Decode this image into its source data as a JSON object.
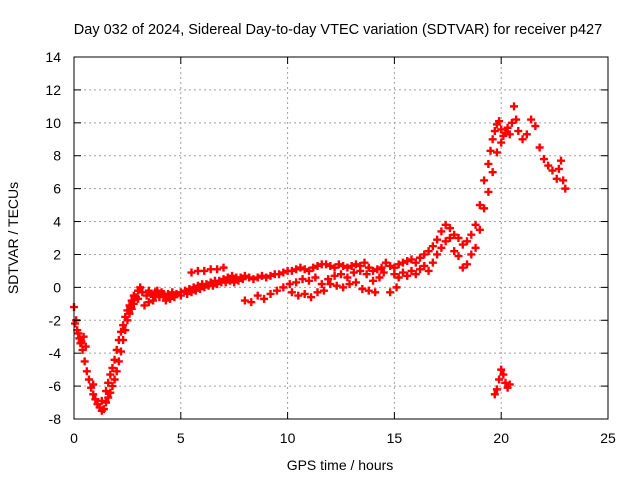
{
  "chart_data": {
    "type": "scatter",
    "title": "Day 032 of 2024, Sidereal Day-to-day VTEC variation (SDTVAR) for receiver p427",
    "xlabel": "GPS time / hours",
    "ylabel": "SDTVAR / TECUs",
    "xlim": [
      0,
      25
    ],
    "ylim": [
      -8,
      14
    ],
    "xticks": [
      0,
      5,
      10,
      15,
      20,
      25
    ],
    "yticks": [
      -8,
      -6,
      -4,
      -2,
      0,
      2,
      4,
      6,
      8,
      10,
      12,
      14
    ],
    "grid": true,
    "marker": "+",
    "color": "#ff0000",
    "series": [
      {
        "name": "SDTVAR",
        "points": [
          [
            0.0,
            -1.2
          ],
          [
            0.1,
            -2.0
          ],
          [
            0.2,
            -2.8
          ],
          [
            0.3,
            -3.4
          ],
          [
            0.4,
            -3.8
          ],
          [
            0.5,
            -4.5
          ],
          [
            0.6,
            -5.1
          ],
          [
            0.7,
            -5.6
          ],
          [
            0.8,
            -6.1
          ],
          [
            0.9,
            -6.5
          ],
          [
            1.0,
            -6.8
          ],
          [
            1.1,
            -7.1
          ],
          [
            1.2,
            -7.3
          ],
          [
            1.3,
            -7.5
          ],
          [
            1.4,
            -7.4
          ],
          [
            1.5,
            -7.0
          ],
          [
            1.6,
            -6.7
          ],
          [
            1.7,
            -6.4
          ],
          [
            1.8,
            -6.0
          ],
          [
            1.9,
            -5.6
          ],
          [
            2.0,
            -5.1
          ],
          [
            2.1,
            -4.5
          ],
          [
            2.2,
            -3.9
          ],
          [
            2.3,
            -3.2
          ],
          [
            2.4,
            -2.6
          ],
          [
            2.5,
            -2.0
          ],
          [
            2.6,
            -1.6
          ],
          [
            2.7,
            -1.3
          ],
          [
            2.8,
            -1.0
          ],
          [
            2.9,
            -0.6
          ],
          [
            3.0,
            -0.2
          ],
          [
            3.1,
            0.0
          ],
          [
            3.2,
            -0.3
          ],
          [
            3.4,
            -0.5
          ],
          [
            3.6,
            -0.4
          ],
          [
            3.8,
            -0.5
          ],
          [
            4.0,
            -0.6
          ],
          [
            4.2,
            -0.5
          ],
          [
            4.4,
            -0.4
          ],
          [
            4.6,
            -0.3
          ],
          [
            4.8,
            -0.4
          ],
          [
            5.0,
            -0.3
          ],
          [
            5.2,
            -0.2
          ],
          [
            5.4,
            -0.1
          ],
          [
            5.6,
            0.0
          ],
          [
            5.8,
            0.1
          ],
          [
            6.0,
            0.2
          ],
          [
            6.2,
            0.2
          ],
          [
            6.4,
            0.3
          ],
          [
            6.6,
            0.4
          ],
          [
            6.8,
            0.4
          ],
          [
            7.0,
            0.5
          ],
          [
            7.2,
            0.6
          ],
          [
            7.4,
            0.7
          ],
          [
            7.6,
            0.6
          ],
          [
            7.8,
            0.6
          ],
          [
            8.0,
            0.7
          ],
          [
            8.2,
            0.6
          ],
          [
            8.4,
            0.5
          ],
          [
            8.6,
            0.6
          ],
          [
            8.8,
            0.7
          ],
          [
            9.0,
            0.6
          ],
          [
            9.2,
            0.7
          ],
          [
            9.4,
            0.8
          ],
          [
            9.6,
            0.8
          ],
          [
            9.8,
            0.9
          ],
          [
            10.0,
            1.0
          ],
          [
            10.2,
            1.0
          ],
          [
            10.4,
            1.1
          ],
          [
            10.6,
            1.2
          ],
          [
            10.8,
            1.1
          ],
          [
            11.0,
            1.0
          ],
          [
            11.2,
            1.2
          ],
          [
            11.4,
            1.3
          ],
          [
            11.6,
            1.4
          ],
          [
            11.8,
            1.4
          ],
          [
            12.0,
            1.3
          ],
          [
            12.2,
            1.2
          ],
          [
            12.4,
            1.4
          ],
          [
            12.6,
            1.3
          ],
          [
            12.8,
            1.2
          ],
          [
            13.0,
            1.3
          ],
          [
            13.2,
            1.4
          ],
          [
            13.4,
            1.3
          ],
          [
            13.6,
            1.5
          ],
          [
            13.8,
            1.2
          ],
          [
            14.0,
            1.0
          ],
          [
            14.2,
            1.1
          ],
          [
            14.4,
            1.2
          ],
          [
            14.6,
            1.5
          ],
          [
            14.8,
            1.3
          ],
          [
            15.0,
            1.2
          ],
          [
            15.2,
            1.4
          ],
          [
            15.4,
            1.5
          ],
          [
            15.6,
            1.6
          ],
          [
            15.8,
            1.7
          ],
          [
            16.0,
            1.5
          ],
          [
            16.2,
            1.8
          ],
          [
            16.4,
            2.0
          ],
          [
            16.6,
            2.2
          ],
          [
            16.8,
            2.5
          ],
          [
            17.0,
            2.9
          ],
          [
            17.2,
            3.4
          ],
          [
            17.4,
            3.8
          ],
          [
            17.6,
            3.6
          ],
          [
            17.8,
            3.2
          ],
          [
            18.0,
            3.0
          ],
          [
            18.2,
            2.6
          ],
          [
            18.4,
            2.8
          ],
          [
            18.6,
            3.2
          ],
          [
            18.8,
            3.8
          ],
          [
            19.0,
            5.0
          ],
          [
            19.2,
            6.5
          ],
          [
            19.4,
            7.5
          ],
          [
            19.5,
            8.3
          ],
          [
            19.6,
            9.0
          ],
          [
            19.7,
            9.5
          ],
          [
            19.8,
            9.9
          ],
          [
            19.9,
            10.1
          ],
          [
            20.0,
            9.6
          ],
          [
            20.1,
            9.2
          ],
          [
            20.2,
            9.4
          ],
          [
            20.3,
            9.7
          ],
          [
            20.4,
            9.3
          ],
          [
            20.5,
            10.0
          ],
          [
            20.6,
            11.0
          ],
          [
            20.7,
            10.2
          ],
          [
            20.8,
            9.5
          ],
          [
            21.0,
            9.0
          ],
          [
            21.2,
            9.3
          ],
          [
            21.4,
            10.2
          ],
          [
            21.6,
            9.8
          ],
          [
            21.8,
            8.5
          ],
          [
            22.0,
            7.8
          ],
          [
            22.2,
            7.4
          ],
          [
            22.4,
            7.1
          ],
          [
            22.6,
            6.6
          ],
          [
            22.7,
            7.2
          ],
          [
            22.8,
            7.7
          ],
          [
            22.9,
            6.5
          ],
          [
            23.0,
            6.0
          ],
          [
            0.05,
            -2.2
          ],
          [
            0.15,
            -2.6
          ],
          [
            0.25,
            -3.1
          ],
          [
            0.35,
            -3.3
          ],
          [
            0.45,
            -3.0
          ],
          [
            0.55,
            -3.6
          ],
          [
            0.9,
            -5.9
          ],
          [
            1.3,
            -6.9
          ],
          [
            1.5,
            -6.3
          ],
          [
            1.6,
            -5.8
          ],
          [
            1.7,
            -5.3
          ],
          [
            1.8,
            -4.9
          ],
          [
            1.9,
            -4.4
          ],
          [
            2.0,
            -3.8
          ],
          [
            2.1,
            -3.2
          ],
          [
            2.2,
            -2.7
          ],
          [
            2.3,
            -2.3
          ],
          [
            2.4,
            -1.8
          ],
          [
            2.5,
            -1.4
          ],
          [
            2.6,
            -1.1
          ],
          [
            2.7,
            -0.8
          ],
          [
            2.8,
            -0.5
          ],
          [
            3.0,
            -0.7
          ],
          [
            3.3,
            -1.1
          ],
          [
            3.5,
            -0.9
          ],
          [
            3.7,
            -0.8
          ],
          [
            3.9,
            -0.2
          ],
          [
            4.1,
            -0.3
          ],
          [
            4.3,
            -0.8
          ],
          [
            4.5,
            -0.7
          ],
          [
            4.7,
            -0.6
          ],
          [
            5.0,
            -0.5
          ],
          [
            5.3,
            -0.4
          ],
          [
            5.5,
            -0.3
          ],
          [
            5.7,
            -0.2
          ],
          [
            5.9,
            -0.1
          ],
          [
            6.1,
            0.0
          ],
          [
            6.3,
            0.1
          ],
          [
            6.5,
            0.1
          ],
          [
            6.7,
            0.2
          ],
          [
            6.9,
            0.3
          ],
          [
            7.1,
            0.3
          ],
          [
            7.3,
            0.4
          ],
          [
            7.5,
            0.3
          ],
          [
            7.7,
            0.4
          ],
          [
            7.9,
            0.5
          ],
          [
            5.5,
            0.9
          ],
          [
            5.8,
            1.0
          ],
          [
            6.1,
            1.0
          ],
          [
            6.4,
            1.1
          ],
          [
            6.7,
            1.1
          ],
          [
            7.0,
            1.2
          ],
          [
            8.0,
            -0.8
          ],
          [
            8.3,
            -0.9
          ],
          [
            8.6,
            -0.5
          ],
          [
            8.9,
            -0.7
          ],
          [
            9.2,
            -0.4
          ],
          [
            9.5,
            -0.2
          ],
          [
            9.8,
            0.0
          ],
          [
            10.1,
            0.2
          ],
          [
            10.4,
            0.3
          ],
          [
            10.7,
            0.5
          ],
          [
            11.0,
            0.4
          ],
          [
            11.3,
            0.6
          ],
          [
            11.6,
            0.2
          ],
          [
            11.9,
            0.5
          ],
          [
            12.2,
            0.7
          ],
          [
            12.5,
            0.8
          ],
          [
            12.8,
            0.6
          ],
          [
            13.1,
            0.9
          ],
          [
            13.4,
            1.0
          ],
          [
            13.7,
            0.8
          ],
          [
            14.0,
            0.4
          ],
          [
            14.3,
            0.6
          ],
          [
            14.5,
            0.9
          ],
          [
            10.2,
            -0.3
          ],
          [
            10.5,
            -0.5
          ],
          [
            10.8,
            -0.4
          ],
          [
            11.1,
            -0.6
          ],
          [
            11.4,
            -0.3
          ],
          [
            11.7,
            -0.2
          ],
          [
            12.0,
            0.2
          ],
          [
            12.3,
            0.1
          ],
          [
            12.6,
            0.0
          ],
          [
            12.9,
            0.2
          ],
          [
            13.2,
            0.3
          ],
          [
            13.5,
            -0.1
          ],
          [
            13.8,
            -0.2
          ],
          [
            14.1,
            -0.3
          ],
          [
            15.0,
            0.8
          ],
          [
            15.2,
            0.6
          ],
          [
            15.4,
            0.9
          ],
          [
            15.6,
            0.7
          ],
          [
            15.8,
            1.0
          ],
          [
            16.0,
            0.8
          ],
          [
            16.2,
            1.1
          ],
          [
            16.4,
            1.3
          ],
          [
            16.6,
            1.0
          ],
          [
            16.8,
            1.5
          ],
          [
            17.0,
            2.0
          ],
          [
            17.2,
            2.4
          ],
          [
            17.4,
            2.8
          ],
          [
            17.6,
            3.0
          ],
          [
            17.8,
            2.2
          ],
          [
            18.0,
            1.9
          ],
          [
            18.2,
            1.2
          ],
          [
            18.4,
            1.4
          ],
          [
            18.6,
            2.0
          ],
          [
            18.8,
            2.4
          ],
          [
            19.0,
            3.5
          ],
          [
            19.2,
            4.8
          ],
          [
            19.4,
            5.8
          ],
          [
            19.6,
            7.0
          ],
          [
            19.8,
            8.2
          ],
          [
            20.0,
            8.8
          ],
          [
            19.7,
            -6.5
          ],
          [
            19.8,
            -6.2
          ],
          [
            19.9,
            -5.6
          ],
          [
            20.0,
            -5.0
          ],
          [
            20.1,
            -5.3
          ],
          [
            20.2,
            -5.8
          ],
          [
            20.3,
            -6.1
          ],
          [
            20.4,
            -5.9
          ],
          [
            3.5,
            -0.2
          ],
          [
            3.8,
            -0.3
          ],
          [
            4.2,
            -0.4
          ],
          [
            14.8,
            -0.3
          ],
          [
            15.1,
            0.0
          ]
        ]
      }
    ]
  }
}
